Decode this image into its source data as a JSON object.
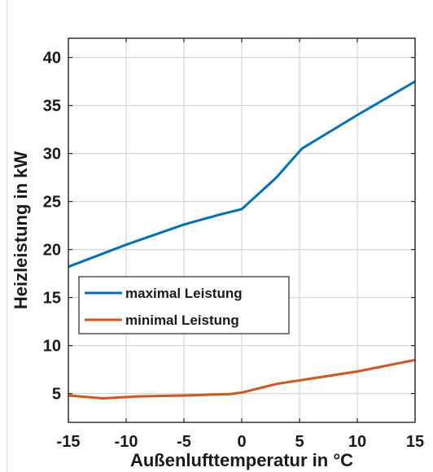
{
  "chart_data": {
    "type": "line",
    "title": "",
    "xlabel": "Außenlufttemperatur in °C",
    "ylabel": "Heizleistung in kW",
    "xlim": [
      -15,
      15
    ],
    "ylim": [
      2,
      42
    ],
    "xticks": [
      -15,
      -10,
      -5,
      0,
      5,
      10,
      15
    ],
    "yticks": [
      5,
      10,
      15,
      20,
      25,
      30,
      35,
      40
    ],
    "xtick_labels": [
      "-15",
      "-10",
      "-5",
      "0",
      "5",
      "10",
      "15"
    ],
    "ytick_labels": [
      "5",
      "10",
      "15",
      "20",
      "25",
      "30",
      "35",
      "40"
    ],
    "grid": true,
    "legend_position": "middle-left",
    "series": [
      {
        "name": "maximal Leistung",
        "color": "#0072BD",
        "x": [
          -15,
          -10,
          -5,
          -2,
          0,
          3,
          5.2,
          10,
          15
        ],
        "y": [
          18.2,
          20.5,
          22.6,
          23.6,
          24.2,
          27.5,
          30.5,
          34,
          37.5
        ]
      },
      {
        "name": "minimal Leistung",
        "color": "#D95319",
        "x": [
          -15,
          -12,
          -9,
          -5,
          -1,
          0,
          3,
          10,
          15
        ],
        "y": [
          4.8,
          4.5,
          4.7,
          4.8,
          4.95,
          5.1,
          6,
          7.3,
          8.5
        ]
      }
    ]
  }
}
